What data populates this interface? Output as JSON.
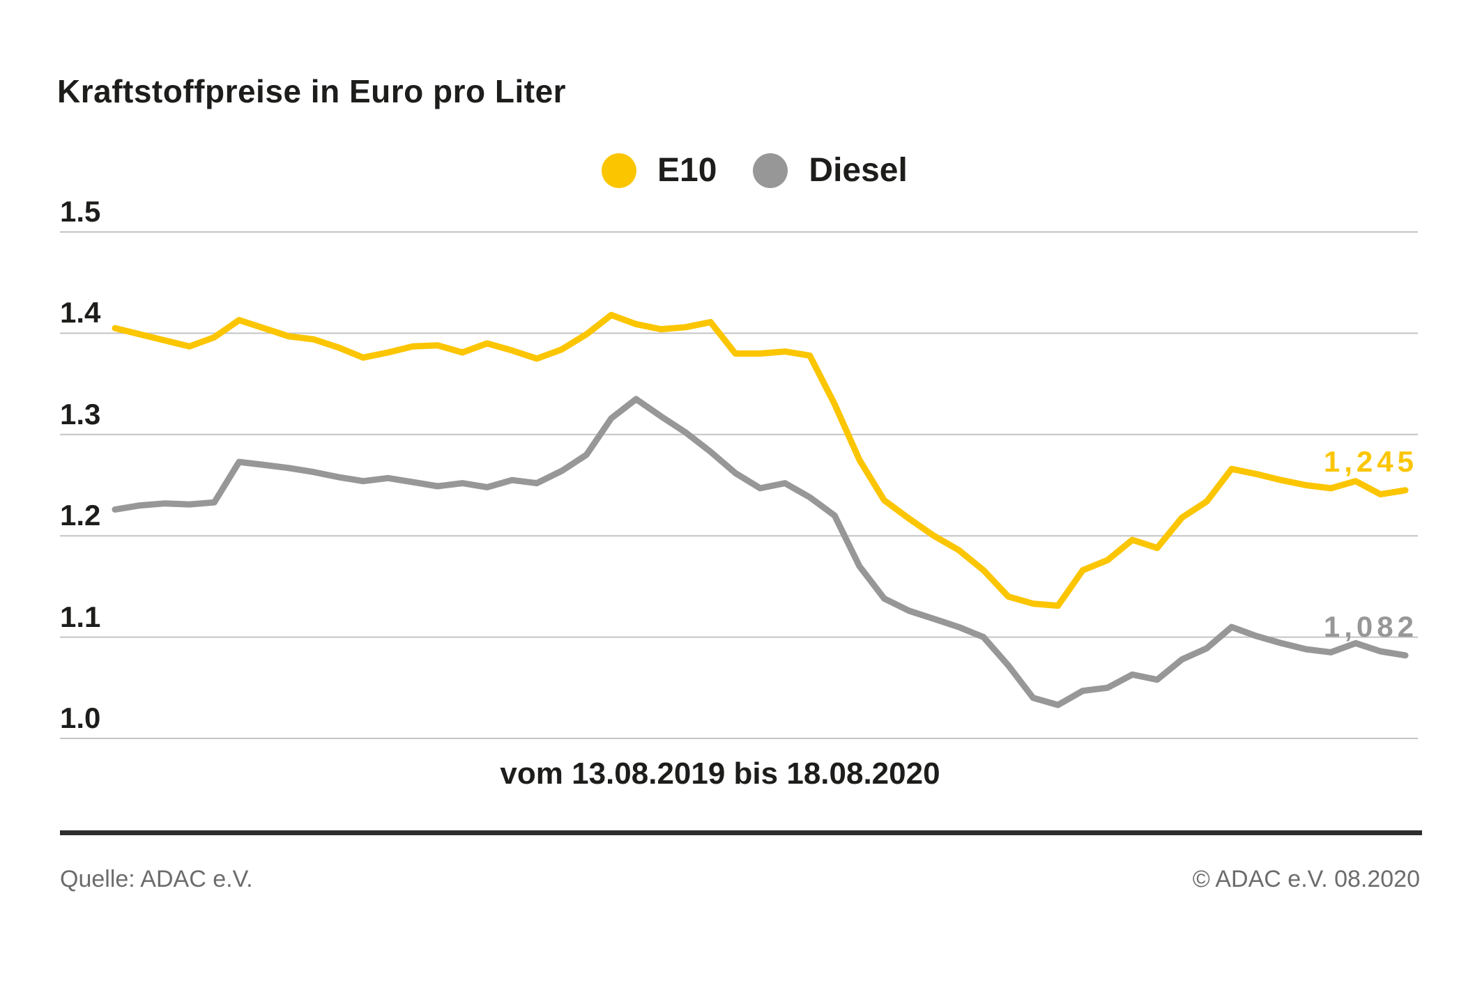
{
  "page": {
    "title": "Kraftstoffpreise in Euro pro Liter",
    "caption": "vom 13.08.2019 bis 18.08.2020",
    "source_left": "Quelle: ADAC e.V.",
    "source_right": "© ADAC e.V. 08.2020"
  },
  "colors": {
    "e10": "#fbc500",
    "diesel": "#979797",
    "grid": "#c4c4c4",
    "text": "#1d1d1b",
    "footer_text": "#6c6c6c",
    "separator": "#2e2e2d",
    "background": "#ffffff"
  },
  "legend": {
    "items": [
      {
        "label": "E10",
        "icon": "circle-swatch-yellow"
      },
      {
        "label": "Diesel",
        "icon": "circle-swatch-gray"
      }
    ]
  },
  "chart_data": {
    "type": "line",
    "title": "Kraftstoffpreise in Euro pro Liter",
    "xlabel": "vom 13.08.2019 bis 18.08.2020",
    "ylabel": "Euro pro Liter",
    "x_start_date": "13.08.2019",
    "x_end_date": "18.08.2020",
    "x_unit": "week",
    "ylim": [
      0.95,
      1.55
    ],
    "yticks": [
      "1.5",
      "1.4",
      "1.3",
      "1.2",
      "1.1",
      "1.0"
    ],
    "grid": "horizontal",
    "legend_position": "top-center",
    "series": [
      {
        "name": "E10",
        "color": "#fbc500",
        "end_label": "1,245",
        "end_value": 1.245,
        "values": [
          1.405,
          1.399,
          1.393,
          1.387,
          1.396,
          1.413,
          1.405,
          1.397,
          1.394,
          1.386,
          1.376,
          1.381,
          1.387,
          1.388,
          1.381,
          1.39,
          1.383,
          1.375,
          1.384,
          1.399,
          1.418,
          1.409,
          1.404,
          1.406,
          1.411,
          1.38,
          1.38,
          1.382,
          1.378,
          1.33,
          1.275,
          1.235,
          1.217,
          1.2,
          1.186,
          1.166,
          1.14,
          1.133,
          1.131,
          1.166,
          1.176,
          1.196,
          1.188,
          1.218,
          1.234,
          1.266,
          1.261,
          1.255,
          1.25,
          1.247,
          1.254,
          1.241,
          1.245
        ]
      },
      {
        "name": "Diesel",
        "color": "#979797",
        "end_label": "1,082",
        "end_value": 1.082,
        "values": [
          1.226,
          1.23,
          1.232,
          1.231,
          1.233,
          1.273,
          1.27,
          1.267,
          1.263,
          1.258,
          1.254,
          1.257,
          1.253,
          1.249,
          1.252,
          1.248,
          1.255,
          1.252,
          1.264,
          1.28,
          1.316,
          1.335,
          1.318,
          1.302,
          1.283,
          1.262,
          1.247,
          1.252,
          1.238,
          1.22,
          1.17,
          1.138,
          1.126,
          1.118,
          1.11,
          1.1,
          1.072,
          1.04,
          1.033,
          1.047,
          1.05,
          1.063,
          1.058,
          1.078,
          1.089,
          1.11,
          1.101,
          1.094,
          1.088,
          1.085,
          1.094,
          1.086,
          1.082
        ]
      }
    ]
  }
}
